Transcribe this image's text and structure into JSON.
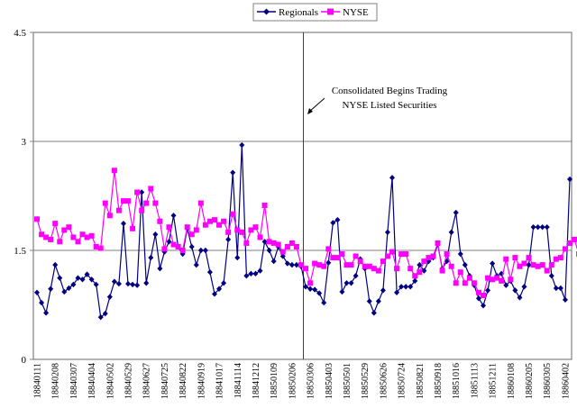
{
  "chart_data": {
    "type": "line",
    "title": "",
    "xlabel": "",
    "ylabel": "",
    "ylim": [
      0,
      4.5
    ],
    "yticks": [
      0,
      1.5,
      3,
      4.5
    ],
    "ytick_labels": [
      "0",
      "1.5",
      "3",
      "4.5"
    ],
    "grid": "horizontal",
    "legend": {
      "placement": "top-center",
      "entries": [
        "Regionals",
        "NYSE"
      ]
    },
    "x_tick_labels": [
      "18840111",
      "18840208",
      "18840307",
      "18840404",
      "18840502",
      "18840529",
      "18840627",
      "18840725",
      "18840822",
      "18840919",
      "18841017",
      "18841114",
      "18841212",
      "18850109",
      "18850206",
      "18850306",
      "18850403",
      "18850501",
      "18850529",
      "18850626",
      "18850724",
      "18850821",
      "18850918",
      "18851016",
      "18851113",
      "18851211",
      "18860108",
      "18860205",
      "18860305",
      "18860402"
    ],
    "x_tick_every": 4,
    "divider_after_index": 58,
    "annotation": {
      "line1": "Consolidated Begins Trading",
      "line2": "NYSE Listed Securities",
      "arrow": "down-left toward divider"
    },
    "series": [
      {
        "name": "Regionals",
        "color": "#000080",
        "marker": "diamond",
        "values": [
          0.92,
          0.78,
          0.64,
          0.97,
          1.3,
          1.12,
          0.93,
          0.98,
          1.03,
          1.12,
          1.1,
          1.17,
          1.1,
          1.03,
          0.58,
          0.63,
          0.86,
          1.07,
          1.04,
          1.87,
          1.04,
          1.03,
          1.02,
          2.3,
          1.05,
          1.4,
          1.72,
          1.25,
          1.48,
          1.62,
          1.98,
          1.55,
          1.45,
          1.8,
          1.55,
          1.3,
          1.5,
          1.5,
          1.2,
          0.9,
          0.97,
          1.05,
          1.65,
          2.57,
          1.4,
          2.95,
          1.15,
          1.18,
          1.18,
          1.22,
          1.62,
          1.5,
          1.35,
          1.55,
          1.42,
          1.32,
          1.3,
          1.3,
          1.28,
          1.0,
          0.97,
          0.96,
          0.91,
          0.78,
          1.33,
          1.88,
          1.92,
          0.93,
          1.05,
          1.05,
          1.15,
          1.38,
          1.25,
          0.8,
          0.64,
          0.8,
          0.95,
          1.75,
          2.5,
          0.92,
          1.0,
          1.0,
          1.0,
          1.08,
          1.3,
          1.22,
          1.35,
          1.4,
          1.58,
          1.25,
          1.35,
          1.75,
          2.02,
          1.45,
          1.3,
          1.15,
          1.02,
          0.84,
          0.74,
          0.95,
          1.32,
          1.15,
          1.18,
          1.02,
          1.08,
          0.95,
          0.85,
          1.0,
          1.3,
          1.82,
          1.82,
          1.82,
          1.82,
          1.15,
          0.98,
          0.98,
          0.82,
          2.48
        ]
      },
      {
        "name": "NYSE",
        "color": "#FF00FF",
        "marker": "square",
        "values": [
          1.93,
          1.72,
          1.68,
          1.65,
          1.87,
          1.62,
          1.78,
          1.82,
          1.68,
          1.62,
          1.72,
          1.68,
          1.7,
          1.55,
          1.53,
          2.15,
          1.98,
          2.6,
          2.05,
          2.18,
          2.18,
          1.8,
          2.3,
          2.05,
          2.15,
          2.35,
          2.15,
          1.9,
          1.52,
          1.82,
          1.58,
          1.55,
          1.5,
          1.82,
          1.72,
          1.78,
          2.15,
          1.85,
          1.9,
          1.92,
          1.85,
          1.9,
          1.75,
          2.0,
          1.78,
          1.75,
          1.6,
          1.78,
          1.82,
          1.68,
          2.12,
          1.62,
          1.6,
          1.58,
          1.48,
          1.55,
          1.6,
          1.55,
          1.3,
          1.25,
          1.05,
          1.32,
          1.3,
          1.28,
          1.52,
          1.4,
          1.4,
          1.45,
          1.3,
          1.3,
          1.42,
          1.35,
          1.28,
          1.28,
          1.25,
          1.22,
          1.35,
          1.42,
          1.48,
          1.25,
          1.45,
          1.45,
          1.25,
          1.15,
          1.2,
          1.35,
          1.4,
          1.42,
          1.6,
          1.22,
          1.45,
          1.28,
          1.05,
          1.2,
          1.05,
          1.12,
          1.05,
          0.92,
          0.88,
          1.12,
          1.1,
          1.12,
          1.08,
          1.38,
          1.1,
          1.4,
          1.28,
          1.32,
          1.4,
          1.3,
          1.28,
          1.3,
          1.22,
          1.3,
          1.38,
          1.4,
          1.52,
          1.6,
          1.65,
          1.45
        ]
      }
    ]
  }
}
